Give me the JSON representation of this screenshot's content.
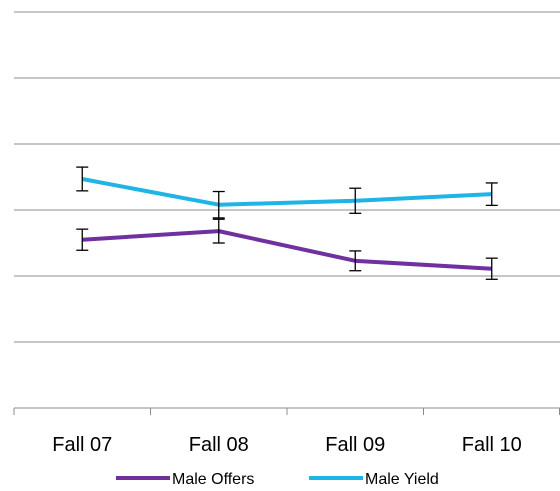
{
  "chart_data": {
    "type": "line",
    "categories": [
      "Fall 07",
      "Fall 08",
      "Fall 09",
      "Fall 10"
    ],
    "ylim": [
      0,
      6
    ],
    "grid": true,
    "legend_position": "bottom",
    "series": [
      {
        "name": "Male Offers",
        "color": "#7030a0",
        "values": [
          2.55,
          2.68,
          2.23,
          2.11
        ],
        "error": [
          0.16,
          0.18,
          0.15,
          0.16
        ]
      },
      {
        "name": "Male Yield",
        "color": "#1fb4e6",
        "values": [
          3.47,
          3.08,
          3.14,
          3.24
        ],
        "error": [
          0.18,
          0.2,
          0.19,
          0.17
        ]
      }
    ]
  }
}
